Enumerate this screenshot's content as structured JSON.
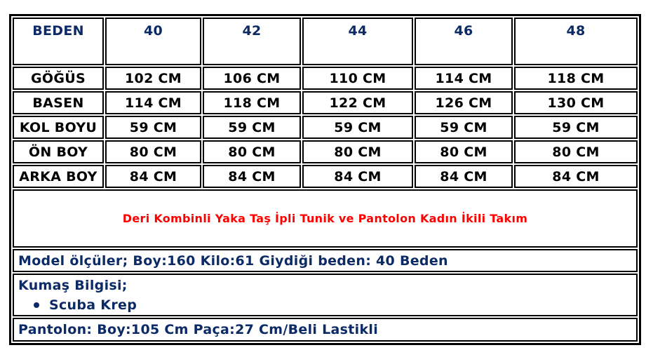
{
  "header": [
    "BEDEN",
    "40",
    "42",
    "44",
    "46",
    "48"
  ],
  "rows": [
    {
      "label": "GÖĞÜS",
      "values": [
        "102 CM",
        "106 CM",
        "110 CM",
        "114 CM",
        "118 CM"
      ]
    },
    {
      "label": "BASEN",
      "values": [
        "114 CM",
        "118 CM",
        "122 CM",
        "126 CM",
        "130 CM"
      ]
    },
    {
      "label": "KOL BOYU",
      "values": [
        "59 CM",
        "59 CM",
        "59 CM",
        "59 CM",
        "59 CM"
      ]
    },
    {
      "label": "ÖN BOY",
      "values": [
        "80 CM",
        "80 CM",
        "80 CM",
        "80 CM",
        "80 CM"
      ]
    },
    {
      "label": "ARKA BOY",
      "values": [
        "84 CM",
        "84 CM",
        "84 CM",
        "84 CM",
        "84 CM"
      ]
    }
  ],
  "product_title": "Deri Kombinli Yaka Taş İpli Tunik ve Pantolon Kadın İkili Takım",
  "model_info": "Model ölçüler; Boy:160 Kilo:61 Giydiği beden: 40 Beden",
  "fabric": {
    "heading": "Kumaş Bilgisi;",
    "items": [
      "Scuba Krep"
    ]
  },
  "pants_info": "Pantolon: Boy:105 Cm Paça:27 Cm/Beli Lastikli",
  "colors": {
    "heading": "#0b2a66",
    "title": "#ff0000",
    "text": "#000000"
  }
}
